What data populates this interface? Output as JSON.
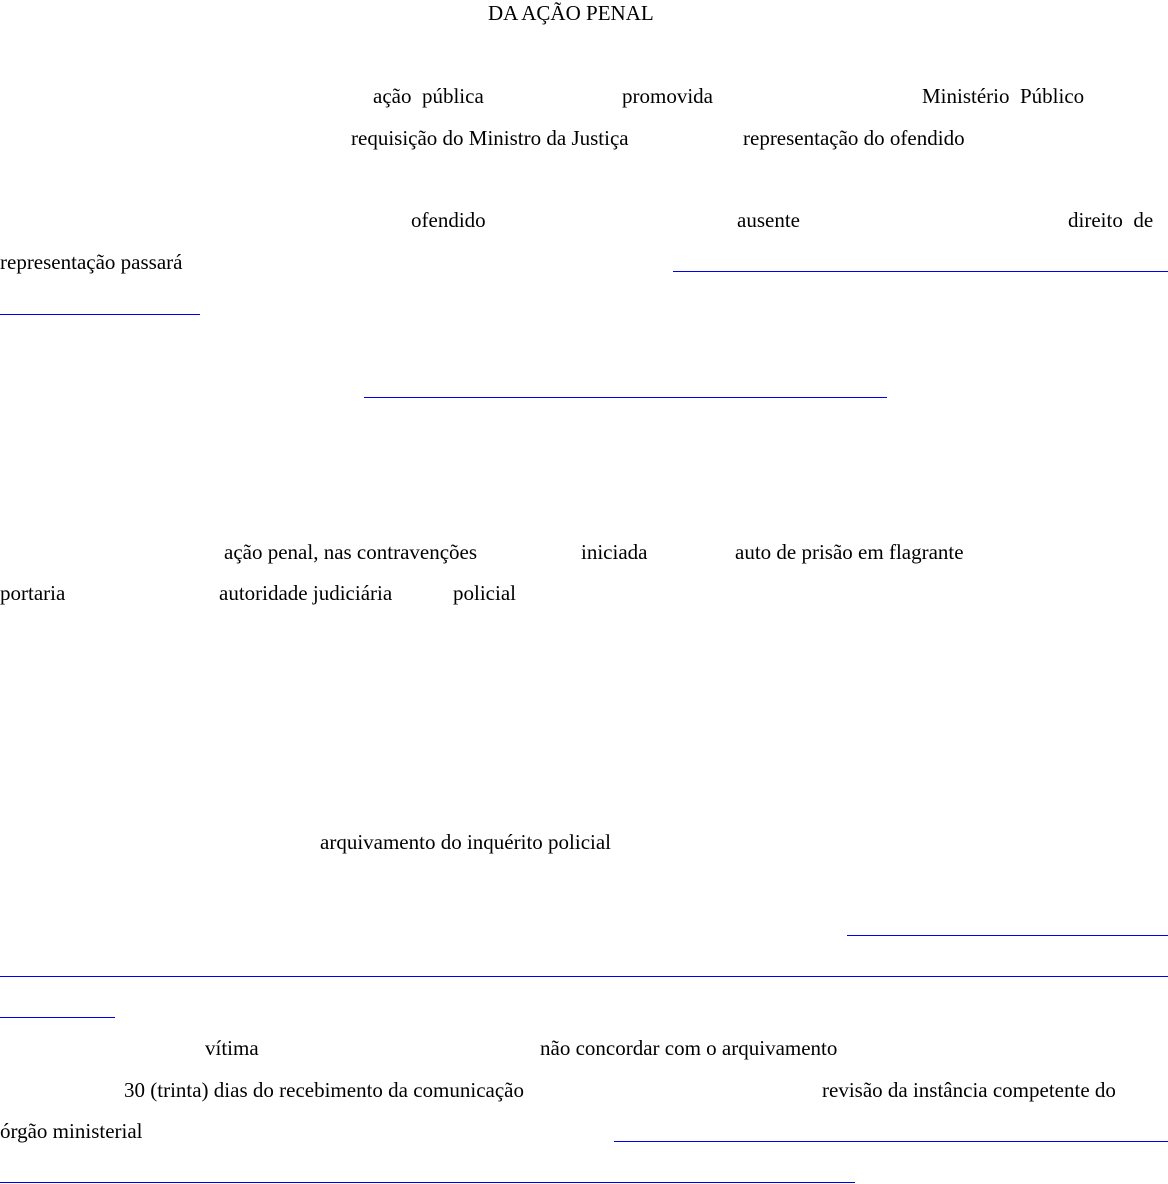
{
  "title": "DA AÇÃO PENAL",
  "p1": {
    "w1": "ação  pública",
    "w2": "promovida",
    "w3": "Ministério  Público",
    "w4": "requisição do Ministro da Justiça",
    "w5": "representação do ofendido"
  },
  "p2": {
    "w1": "ofendido",
    "w2": "ausente",
    "w3": "direito  de",
    "w4": "representação passará"
  },
  "p3": {
    "w1": "ação penal, nas contravenções",
    "w2": "iniciada",
    "w3": "auto de prisão em flagrante",
    "w4": "portaria",
    "w5": "autoridade judiciária",
    "w6": "policial"
  },
  "p4": {
    "w1": "arquivamento do inquérito policial"
  },
  "p5": {
    "w1": "vítima",
    "w2": "não concordar com o arquivamento",
    "w3": "30 (trinta) dias do recebimento da comunicação",
    "w4": "revisão da instância competente do",
    "w5": "órgão ministerial"
  },
  "colors": {
    "link": "#0000ee",
    "text": "#000000"
  }
}
